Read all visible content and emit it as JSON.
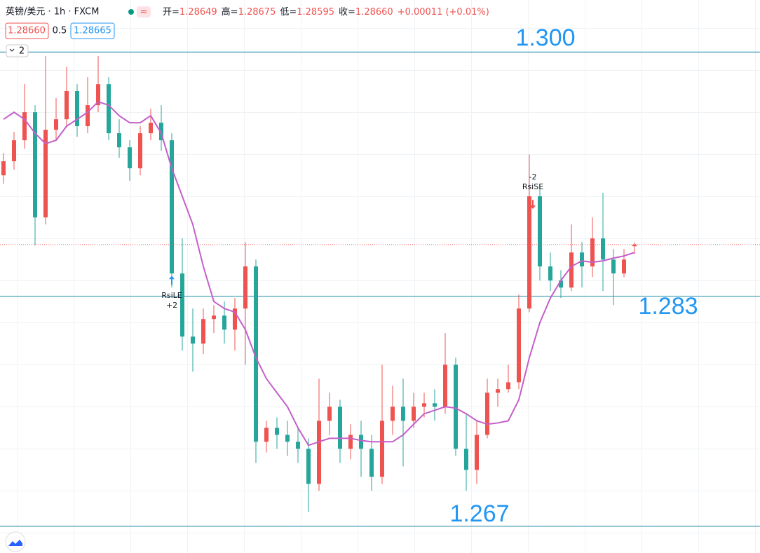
{
  "header": {
    "symbol": "英镑/美元 · 1h · FXCM",
    "ohlc": [
      {
        "label": "开=",
        "value": "1.28649"
      },
      {
        "label": "高=",
        "value": "1.28675"
      },
      {
        "label": "低=",
        "value": "1.28595"
      },
      {
        "label": "收=",
        "value": "1.28660"
      }
    ],
    "change": "+0.00011 (+0.01%)",
    "price_boxes": [
      "1.28660",
      "0.5",
      "1.28665"
    ],
    "indicator_count": "2"
  },
  "chart_data": {
    "type": "candlestick",
    "ylim": [
      1.26514,
      1.30362
    ],
    "grid": true,
    "up_color": "#ef5350",
    "down_color": "#26a69a",
    "open": [
      1.29142,
      1.2924,
      1.29386,
      1.29581,
      1.28849,
      1.29459,
      1.29532,
      1.29728,
      1.29484,
      1.2963,
      1.29776,
      1.29435,
      1.29337,
      1.29191,
      1.29435,
      1.29508,
      1.29386,
      1.28459,
      1.2802,
      1.27971,
      1.28142,
      1.28166,
      1.28068,
      1.28215,
      1.28508,
      1.27288,
      1.27385,
      1.27336,
      1.27288,
      1.27239,
      1.26995,
      1.27434,
      1.27532,
      1.27239,
      1.27336,
      1.27239,
      1.27044,
      1.27434,
      1.27532,
      1.27434,
      1.27532,
      1.27556,
      1.27532,
      1.27824,
      1.27239,
      1.27092,
      1.27336,
      1.27629,
      1.27654,
      1.27702,
      1.28215,
      1.28996,
      1.28508,
      1.2841,
      1.28361,
      1.28605,
      1.28508,
      1.28703,
      1.28556,
      1.28459,
      1.28649
    ],
    "high": [
      1.29298,
      1.29445,
      1.29776,
      1.2963,
      1.29972,
      1.29679,
      1.29898,
      1.29776,
      1.29825,
      1.29972,
      1.29825,
      1.29532,
      1.29386,
      1.29484,
      1.29606,
      1.2963,
      1.29435,
      1.28703,
      1.28215,
      1.28215,
      1.28239,
      1.28264,
      1.28288,
      1.28678,
      1.28556,
      1.27434,
      1.27458,
      1.27434,
      1.27385,
      1.27312,
      1.27727,
      1.27629,
      1.2758,
      1.2741,
      1.27434,
      1.27336,
      1.27824,
      1.27678,
      1.27727,
      1.27629,
      1.27629,
      1.27654,
      1.28044,
      1.27873,
      1.27483,
      1.27434,
      1.27727,
      1.27727,
      1.27824,
      1.28312,
      1.29288,
      1.29069,
      1.28605,
      1.28483,
      1.288,
      1.28678,
      1.28849,
      1.2902,
      1.2863,
      1.2863,
      1.28675
    ],
    "low": [
      1.29083,
      1.29181,
      1.29327,
      1.28654,
      1.288,
      1.29386,
      1.29474,
      1.2941,
      1.29435,
      1.29581,
      1.29386,
      1.29264,
      1.29103,
      1.29142,
      1.29386,
      1.29313,
      1.28361,
      1.27922,
      1.27776,
      1.27898,
      1.28044,
      1.27971,
      1.27922,
      1.27824,
      1.27141,
      1.27214,
      1.27239,
      1.2719,
      1.27141,
      1.268,
      1.26946,
      1.27336,
      1.27141,
      1.27166,
      1.27044,
      1.26946,
      1.26995,
      1.27336,
      1.27117,
      1.27385,
      1.27458,
      1.27434,
      1.27483,
      1.2719,
      1.26946,
      1.26995,
      1.27312,
      1.27532,
      1.27629,
      1.27654,
      1.2819,
      1.2841,
      1.28337,
      1.28288,
      1.28337,
      1.28361,
      1.28434,
      1.28337,
      1.28239,
      1.28434,
      1.28595
    ],
    "close": [
      1.2924,
      1.29386,
      1.29581,
      1.28849,
      1.29459,
      1.29532,
      1.29728,
      1.29484,
      1.2963,
      1.29776,
      1.29435,
      1.29337,
      1.29191,
      1.29435,
      1.29508,
      1.29386,
      1.28459,
      1.2802,
      1.27971,
      1.28142,
      1.28166,
      1.28068,
      1.28215,
      1.28508,
      1.27288,
      1.27385,
      1.27336,
      1.27288,
      1.27239,
      1.26995,
      1.27434,
      1.27532,
      1.27239,
      1.27336,
      1.27239,
      1.27044,
      1.27434,
      1.27532,
      1.27434,
      1.27532,
      1.27556,
      1.27532,
      1.27824,
      1.27239,
      1.27092,
      1.27336,
      1.27629,
      1.27654,
      1.27702,
      1.28215,
      1.28996,
      1.28508,
      1.2841,
      1.28361,
      1.28605,
      1.28508,
      1.28703,
      1.28556,
      1.28459,
      1.28556,
      1.2866
    ],
    "ma": {
      "color": "#c45fc9",
      "values": [
        1.29532,
        1.29581,
        1.29532,
        1.29435,
        1.29362,
        1.29386,
        1.29484,
        1.29532,
        1.29581,
        1.29654,
        1.2963,
        1.29557,
        1.29508,
        1.29508,
        1.29557,
        1.29435,
        1.29191,
        1.28996,
        1.288,
        1.28508,
        1.28264,
        1.28215,
        1.2819,
        1.28068,
        1.27873,
        1.27727,
        1.27629,
        1.27532,
        1.27385,
        1.27263,
        1.27288,
        1.27312,
        1.27312,
        1.27312,
        1.27297,
        1.27288,
        1.27288,
        1.27288,
        1.27336,
        1.2741,
        1.27483,
        1.27507,
        1.27532,
        1.27522,
        1.27483,
        1.27434,
        1.2741,
        1.27419,
        1.27434,
        1.2758,
        1.27873,
        1.28117,
        1.28288,
        1.2841,
        1.28508,
        1.28547,
        1.28537,
        1.28547,
        1.28566,
        1.28581,
        1.28605
      ]
    },
    "last_price": 1.2866,
    "last_price_color": "#ef5350",
    "hlines": [
      {
        "value": 1.3,
        "label": "1.300"
      },
      {
        "value": 1.283,
        "label": "1.283"
      },
      {
        "value": 1.267,
        "label": "1.267"
      }
    ],
    "hline_color": "#1e88a8",
    "signals": [
      {
        "index": 16,
        "text": "RsiLE",
        "qty": "+2",
        "side": "long"
      },
      {
        "index": 50,
        "text": "RsiSE",
        "qty": "-2",
        "side": "short"
      }
    ]
  }
}
